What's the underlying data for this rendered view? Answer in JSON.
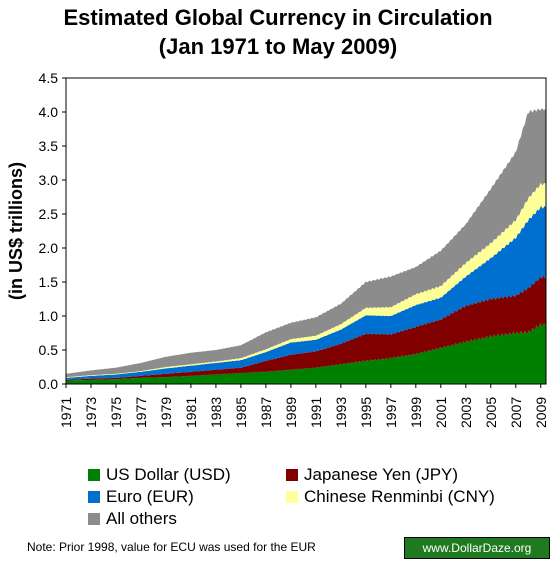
{
  "title_line1": "Estimated Global Currency in Circulation",
  "title_line2": "(Jan 1971 to May 2009)",
  "note": "Note: Prior 1998, value for ECU was used for the EUR",
  "badge": "www.DollarDaze.org",
  "legend": {
    "usd": "US Dollar (USD)",
    "jpy": "Japanese Yen (JPY)",
    "eur": "Euro (EUR)",
    "cny": "Chinese Renminbi (CNY)",
    "oth": "All others"
  },
  "colors": {
    "usd": "#008000",
    "jpy": "#800000",
    "eur": "#0070d0",
    "cny": "#ffff99",
    "oth": "#8c8c8c"
  },
  "chart_data": {
    "type": "area",
    "stacked": true,
    "ylabel": "(in US$ trillions)",
    "ylim": [
      0,
      4.5
    ],
    "yticks": [
      "0.0",
      "0.5",
      "1.0",
      "1.5",
      "2.0",
      "2.5",
      "3.0",
      "3.5",
      "4.0",
      "4.5"
    ],
    "xticks": [
      "1971",
      "1973",
      "1975",
      "1977",
      "1979",
      "1981",
      "1983",
      "1985",
      "1987",
      "1989",
      "1991",
      "1993",
      "1995",
      "1997",
      "1999",
      "2001",
      "2003",
      "2005",
      "2007",
      "2009"
    ],
    "x": [
      1971,
      1973,
      1975,
      1977,
      1979,
      1981,
      1983,
      1985,
      1987,
      1989,
      1991,
      1993,
      1995,
      1997,
      1999,
      2001,
      2003,
      2005,
      2007,
      2008,
      2009
    ],
    "series": [
      {
        "name": "US Dollar (USD)",
        "key": "usd",
        "values": [
          0.05,
          0.06,
          0.07,
          0.09,
          0.1,
          0.12,
          0.14,
          0.16,
          0.18,
          0.21,
          0.24,
          0.29,
          0.34,
          0.38,
          0.44,
          0.53,
          0.62,
          0.7,
          0.75,
          0.76,
          0.87
        ]
      },
      {
        "name": "Japanese Yen (JPY)",
        "key": "jpy",
        "values": [
          0.01,
          0.02,
          0.02,
          0.03,
          0.05,
          0.06,
          0.07,
          0.08,
          0.16,
          0.22,
          0.24,
          0.3,
          0.4,
          0.35,
          0.4,
          0.42,
          0.53,
          0.55,
          0.55,
          0.65,
          0.7
        ]
      },
      {
        "name": "Euro (EUR)",
        "key": "eur",
        "values": [
          0.03,
          0.04,
          0.05,
          0.06,
          0.08,
          0.09,
          0.1,
          0.11,
          0.13,
          0.18,
          0.17,
          0.21,
          0.27,
          0.27,
          0.32,
          0.32,
          0.43,
          0.6,
          0.85,
          1.0,
          1.03
        ]
      },
      {
        "name": "Chinese Renminbi (CNY)",
        "key": "cny",
        "values": [
          0.01,
          0.01,
          0.01,
          0.01,
          0.02,
          0.02,
          0.02,
          0.03,
          0.04,
          0.05,
          0.06,
          0.08,
          0.11,
          0.13,
          0.16,
          0.17,
          0.2,
          0.22,
          0.26,
          0.32,
          0.34
        ]
      },
      {
        "name": "All others",
        "key": "oth",
        "values": [
          0.05,
          0.07,
          0.09,
          0.12,
          0.15,
          0.17,
          0.17,
          0.19,
          0.25,
          0.24,
          0.27,
          0.3,
          0.38,
          0.45,
          0.4,
          0.52,
          0.57,
          0.8,
          1.0,
          1.27,
          1.1
        ]
      }
    ]
  }
}
